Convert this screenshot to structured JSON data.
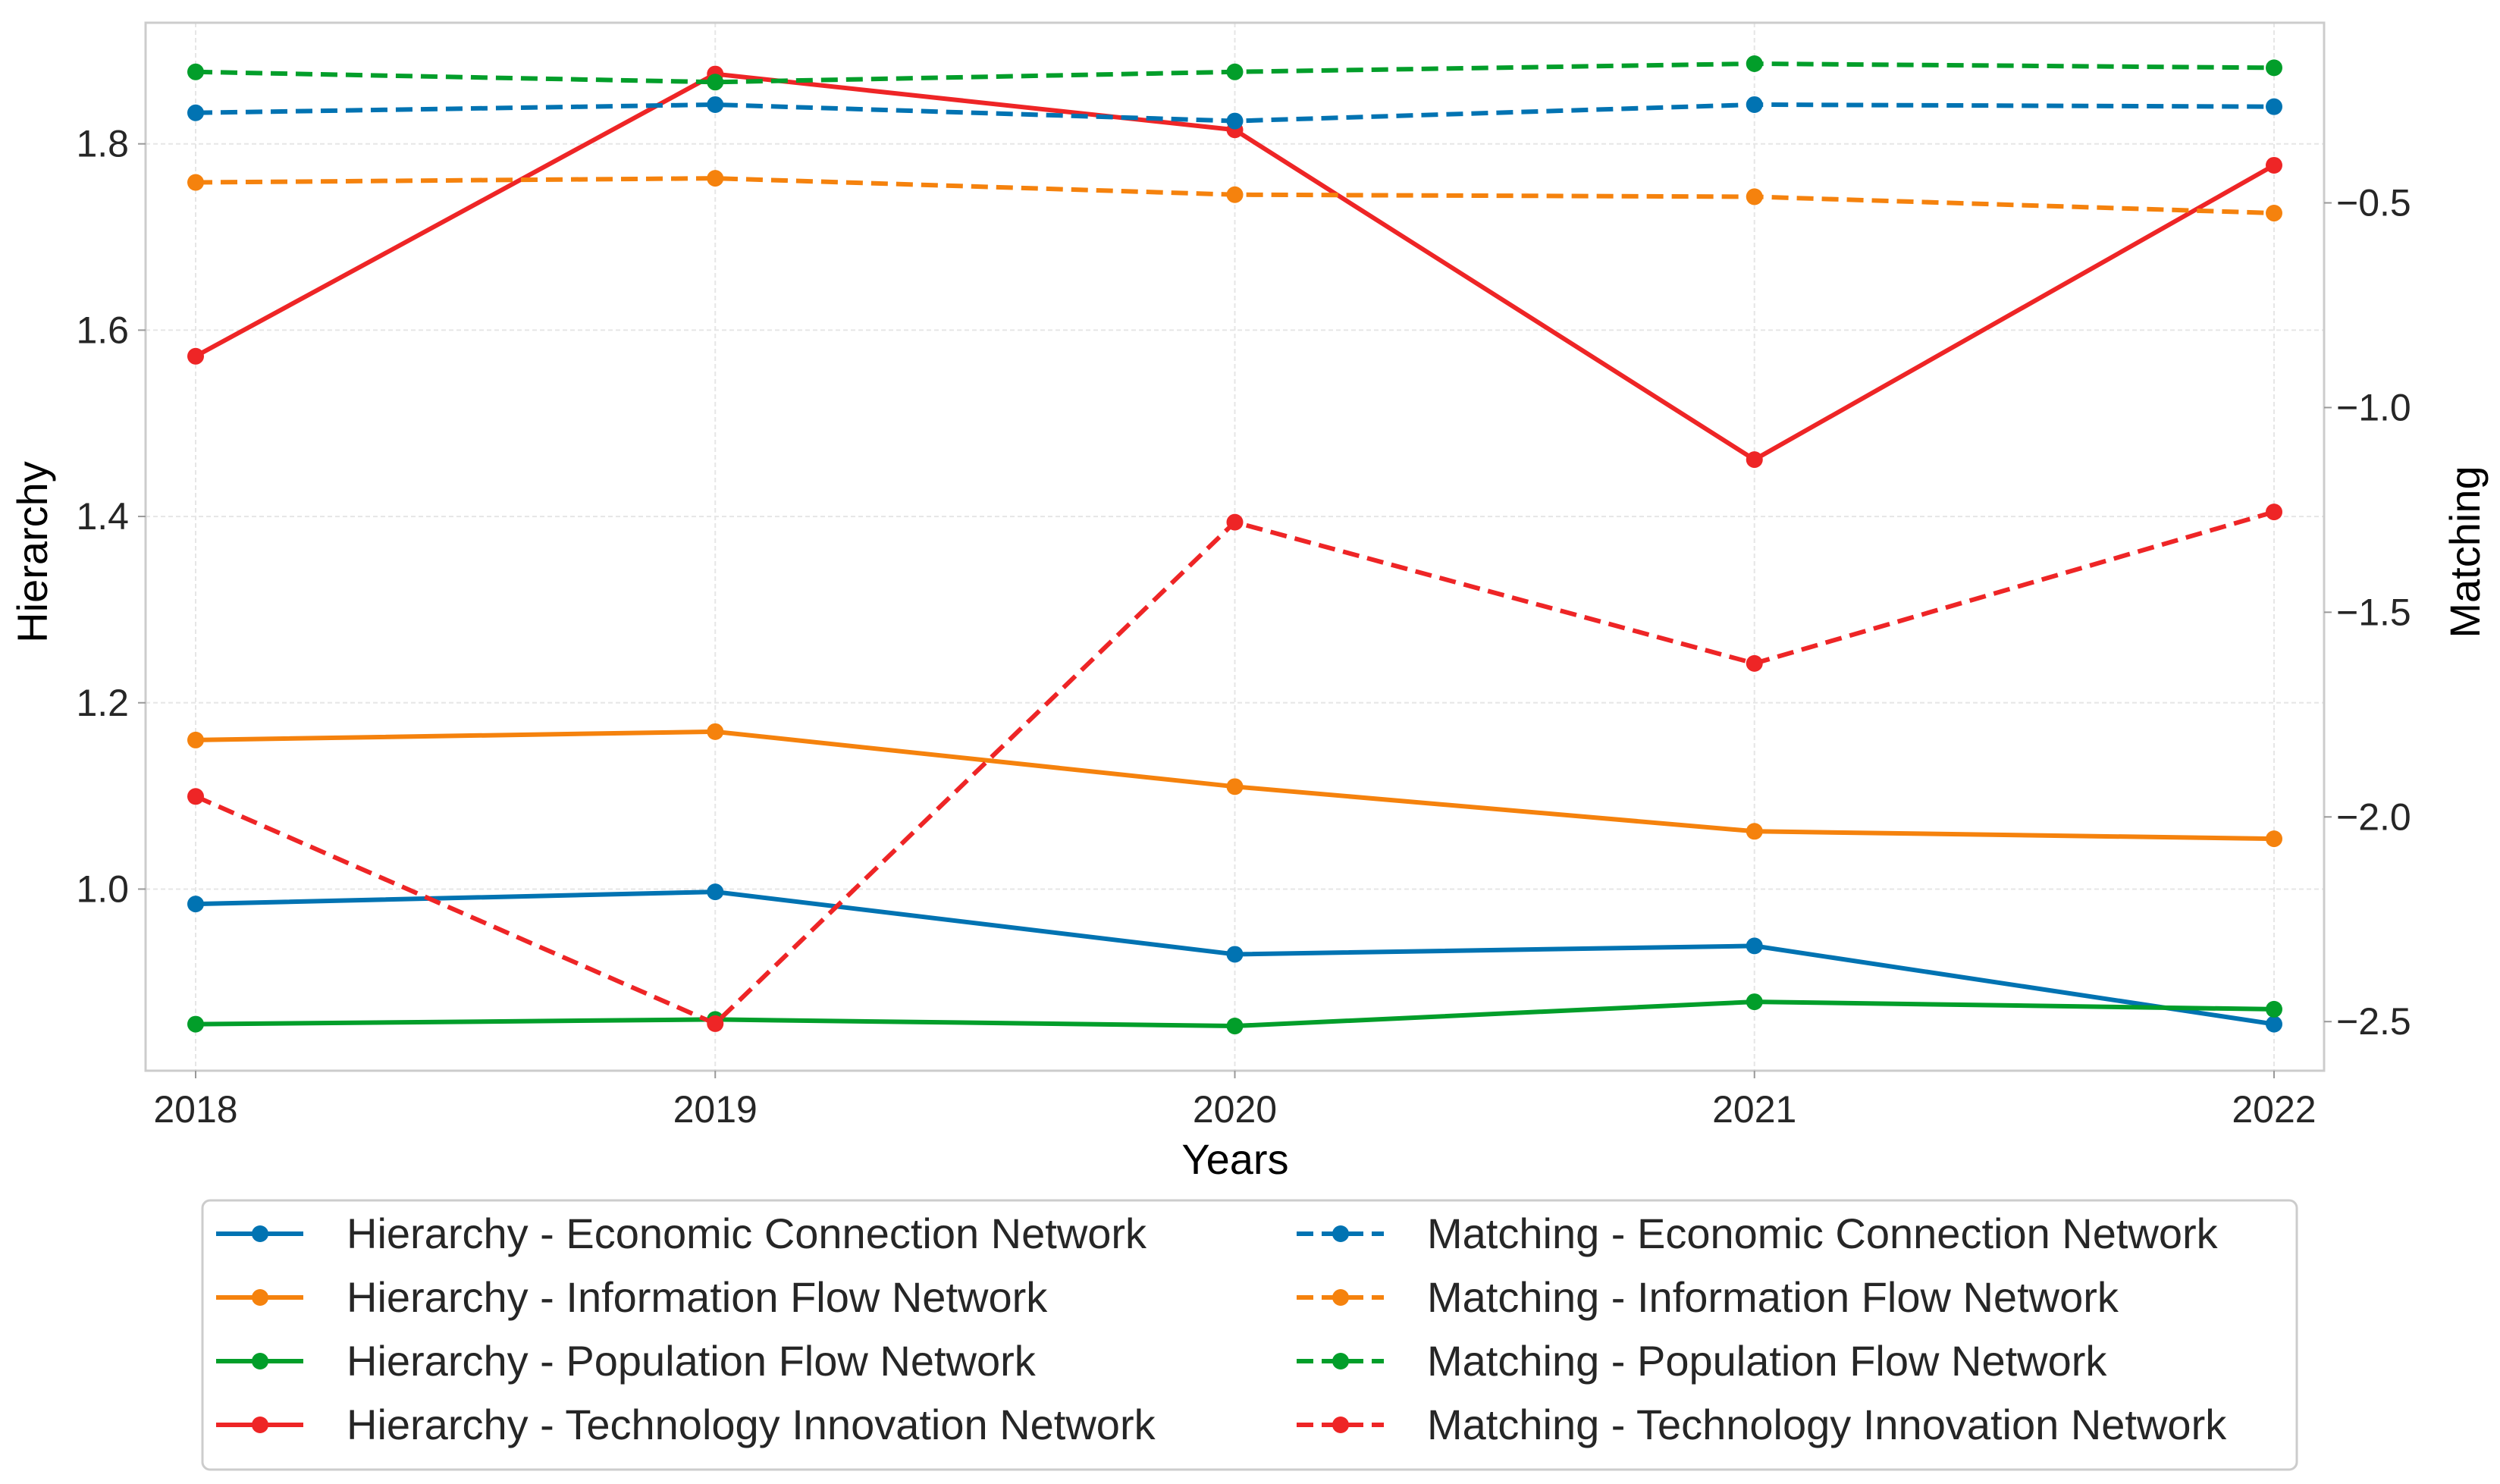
{
  "chart_data": {
    "type": "line",
    "title": "",
    "xlabel": "Years",
    "ylabel_left": "Hierarchy",
    "ylabel_right": "Matching",
    "x": [
      2018,
      2019,
      2020,
      2021,
      2022
    ],
    "x_tick_labels": [
      "2018",
      "2019",
      "2020",
      "2021",
      "2022"
    ],
    "ylim_left": [
      0.805,
      1.93
    ],
    "ylim_right": [
      -2.62,
      -0.06
    ],
    "yticks_left": [
      1.0,
      1.2,
      1.4,
      1.6,
      1.8
    ],
    "yticks_left_labels": [
      "1.0",
      "1.2",
      "1.4",
      "1.6",
      "1.8"
    ],
    "yticks_right": [
      -2.5,
      -2.0,
      -1.5,
      -1.0,
      -0.5
    ],
    "yticks_right_labels": [
      "−2.5",
      "−2.0",
      "−1.5",
      "−1.0",
      "−0.5"
    ],
    "grid": true,
    "legend_position": "below",
    "series": [
      {
        "name": "Hierarchy - Economic Connection Network",
        "axis": "left",
        "style": "solid",
        "color": "#0173b2",
        "values": [
          0.984,
          0.997,
          0.93,
          0.939,
          0.855
        ]
      },
      {
        "name": "Hierarchy - Information Flow Network",
        "axis": "left",
        "style": "solid",
        "color": "#f5820d",
        "values": [
          1.16,
          1.169,
          1.11,
          1.062,
          1.054
        ]
      },
      {
        "name": "Hierarchy - Population Flow Network",
        "axis": "left",
        "style": "solid",
        "color": "#029e2a",
        "values": [
          0.855,
          0.86,
          0.853,
          0.879,
          0.871
        ]
      },
      {
        "name": "Hierarchy - Technology Innovation Network",
        "axis": "left",
        "style": "solid",
        "color": "#ee2526",
        "values": [
          1.572,
          1.875,
          1.815,
          1.461,
          1.777
        ]
      },
      {
        "name": "Matching - Economic Connection Network",
        "axis": "right",
        "style": "dashed",
        "color": "#0173b2",
        "values": [
          -0.28,
          -0.26,
          -0.3,
          -0.26,
          -0.265
        ]
      },
      {
        "name": "Matching - Information Flow Network",
        "axis": "right",
        "style": "dashed",
        "color": "#f5820d",
        "values": [
          -0.45,
          -0.44,
          -0.48,
          -0.485,
          -0.525
        ]
      },
      {
        "name": "Matching - Population Flow Network",
        "axis": "right",
        "style": "dashed",
        "color": "#029e2a",
        "values": [
          -0.18,
          -0.205,
          -0.18,
          -0.16,
          -0.17
        ]
      },
      {
        "name": "Matching - Technology Innovation Network",
        "axis": "right",
        "style": "dashed",
        "color": "#ee2526",
        "values": [
          -1.95,
          -2.505,
          -1.28,
          -1.625,
          -1.255
        ]
      }
    ]
  }
}
